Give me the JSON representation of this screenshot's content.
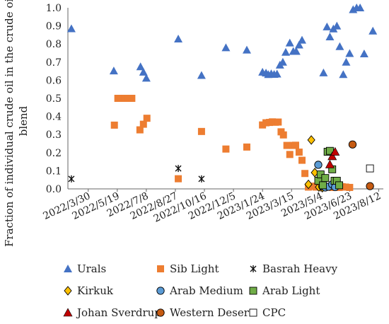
{
  "chart_data": {
    "type": "scatter",
    "title": "",
    "xlabel": "",
    "ylabel": "Fraction of individual crude oil in the crude oil blend",
    "ylabel_lines": [
      "Fraction of individual crude oil in the crude oil",
      "blend"
    ],
    "x_type": "date",
    "xlim": [
      "2022-02-23",
      "2023-08-20"
    ],
    "ylim": [
      0,
      1
    ],
    "x_ticks": [
      "2022-03-30",
      "2022-05-19",
      "2022-07-08",
      "2022-08-27",
      "2022-10-16",
      "2022-12-05",
      "2023-01-24",
      "2023-03-15",
      "2023-05-04",
      "2023-06-23",
      "2023-08-12"
    ],
    "x_tick_labels": [
      "2022/3/30",
      "2022/5/19",
      "2022/7/8",
      "2022/8/27",
      "2022/10/16",
      "2022/12/5",
      "2023/1/24",
      "2023/3/15",
      "2023/5/4",
      "2023/6/23",
      "2023/8/12"
    ],
    "y_ticks": [
      0,
      0.1,
      0.2,
      0.3,
      0.4,
      0.5,
      0.6,
      0.7,
      0.8,
      0.9,
      1.0
    ],
    "y_tick_labels": [
      "0.0",
      "0.1",
      "0.2",
      "0.3",
      "0.4",
      "0.5",
      "0.6",
      "0.7",
      "0.8",
      "0.9",
      "1.0"
    ],
    "grid": false,
    "legend_position": "bottom",
    "series": [
      {
        "name": "Urals",
        "marker": "triangle",
        "color": "#4472C4",
        "points": [
          [
            "2022-03-01",
            0.885
          ],
          [
            "2022-05-13",
            0.652
          ],
          [
            "2022-06-28",
            0.675
          ],
          [
            "2022-07-03",
            0.645
          ],
          [
            "2022-07-08",
            0.612
          ],
          [
            "2022-09-01",
            0.828
          ],
          [
            "2022-10-11",
            0.627
          ],
          [
            "2022-11-22",
            0.78
          ],
          [
            "2022-12-28",
            0.767
          ],
          [
            "2023-01-24",
            0.645
          ],
          [
            "2023-01-30",
            0.64
          ],
          [
            "2023-02-03",
            0.632
          ],
          [
            "2023-02-08",
            0.636
          ],
          [
            "2023-02-13",
            0.633
          ],
          [
            "2023-02-18",
            0.635
          ],
          [
            "2023-02-23",
            0.684
          ],
          [
            "2023-02-28",
            0.7
          ],
          [
            "2023-03-05",
            0.755
          ],
          [
            "2023-03-12",
            0.806
          ],
          [
            "2023-03-18",
            0.76
          ],
          [
            "2023-03-23",
            0.76
          ],
          [
            "2023-03-28",
            0.795
          ],
          [
            "2023-04-02",
            0.822
          ],
          [
            "2023-05-09",
            0.641
          ],
          [
            "2023-05-15",
            0.895
          ],
          [
            "2023-05-20",
            0.84
          ],
          [
            "2023-05-26",
            0.884
          ],
          [
            "2023-06-01",
            0.9
          ],
          [
            "2023-06-06",
            0.786
          ],
          [
            "2023-06-12",
            0.632
          ],
          [
            "2023-06-17",
            0.7
          ],
          [
            "2023-06-23",
            0.748
          ],
          [
            "2023-06-29",
            0.99
          ],
          [
            "2023-07-05",
            1.0
          ],
          [
            "2023-07-11",
            1.0
          ],
          [
            "2023-07-18",
            0.746
          ],
          [
            "2023-08-02",
            0.872
          ]
        ]
      },
      {
        "name": "Sib Light",
        "marker": "square",
        "color": "#ED7D31",
        "points": [
          [
            "2022-05-14",
            0.352
          ],
          [
            "2022-05-20",
            0.5
          ],
          [
            "2022-05-26",
            0.5
          ],
          [
            "2022-06-01",
            0.5
          ],
          [
            "2022-06-07",
            0.5
          ],
          [
            "2022-06-13",
            0.5
          ],
          [
            "2022-06-27",
            0.326
          ],
          [
            "2022-07-03",
            0.357
          ],
          [
            "2022-07-09",
            0.39
          ],
          [
            "2022-09-01",
            0.056
          ],
          [
            "2022-10-11",
            0.317
          ],
          [
            "2022-11-22",
            0.22
          ],
          [
            "2022-12-28",
            0.231
          ],
          [
            "2023-01-24",
            0.353
          ],
          [
            "2023-01-30",
            0.365
          ],
          [
            "2023-02-05",
            0.367
          ],
          [
            "2023-02-10",
            0.37
          ],
          [
            "2023-02-15",
            0.368
          ],
          [
            "2023-02-20",
            0.369
          ],
          [
            "2023-02-25",
            0.315
          ],
          [
            "2023-03-01",
            0.298
          ],
          [
            "2023-03-07",
            0.24
          ],
          [
            "2023-03-12",
            0.19
          ],
          [
            "2023-03-17",
            0.24
          ],
          [
            "2023-03-22",
            0.241
          ],
          [
            "2023-03-28",
            0.203
          ],
          [
            "2023-04-02",
            0.158
          ],
          [
            "2023-04-07",
            0.085
          ],
          [
            "2023-04-13",
            0.01
          ],
          [
            "2023-04-20",
            0.015
          ],
          [
            "2023-04-26",
            0.01
          ],
          [
            "2023-05-02",
            0.012
          ],
          [
            "2023-05-07",
            0.008
          ],
          [
            "2023-05-12",
            0.01
          ],
          [
            "2023-05-18",
            0.01
          ],
          [
            "2023-05-24",
            0.008
          ],
          [
            "2023-05-30",
            0.01
          ],
          [
            "2023-06-05",
            0.008
          ],
          [
            "2023-06-10",
            0.012
          ],
          [
            "2023-06-16",
            0.01
          ],
          [
            "2023-06-23",
            0.008
          ]
        ]
      },
      {
        "name": "Basrah Heavy",
        "marker": "asterisk",
        "color": "#111111",
        "points": [
          [
            "2022-03-01",
            0.055
          ],
          [
            "2022-09-01",
            0.113
          ],
          [
            "2022-10-11",
            0.055
          ]
        ]
      },
      {
        "name": "Kirkuk",
        "marker": "diamond",
        "color": "#FFC000",
        "points": [
          [
            "2023-04-13",
            0.025
          ],
          [
            "2023-04-18",
            0.27
          ],
          [
            "2023-04-24",
            0.09
          ],
          [
            "2023-05-01",
            0.01
          ],
          [
            "2023-05-07",
            0.006
          ]
        ]
      },
      {
        "name": "Arab Medium",
        "marker": "circle",
        "color": "#5B9BD5",
        "points": [
          [
            "2023-04-30",
            0.133
          ],
          [
            "2023-05-07",
            0.015
          ],
          [
            "2023-05-12",
            0.008
          ],
          [
            "2023-05-18",
            0.012
          ],
          [
            "2023-05-24",
            0.025
          ],
          [
            "2023-05-29",
            0.01
          ]
        ]
      },
      {
        "name": "Arab Light",
        "marker": "square",
        "color": "#70AD47",
        "points": [
          [
            "2023-04-30",
            0.045
          ],
          [
            "2023-05-04",
            0.08
          ],
          [
            "2023-05-08",
            0.02
          ],
          [
            "2023-05-12",
            0.06
          ],
          [
            "2023-05-16",
            0.205
          ],
          [
            "2023-05-20",
            0.21
          ],
          [
            "2023-05-24",
            0.108
          ],
          [
            "2023-05-28",
            0.045
          ],
          [
            "2023-06-01",
            0.045
          ],
          [
            "2023-06-05",
            0.02
          ]
        ]
      },
      {
        "name": "Johan Sverdrup",
        "marker": "triangle",
        "color": "#C00000",
        "points": [
          [
            "2023-05-20",
            0.135
          ],
          [
            "2023-05-24",
            0.18
          ],
          [
            "2023-05-29",
            0.205
          ]
        ]
      },
      {
        "name": "Western Desert",
        "marker": "circle",
        "color": "#C55A11",
        "points": [
          [
            "2023-06-28",
            0.245
          ],
          [
            "2023-07-28",
            0.015
          ]
        ]
      },
      {
        "name": "CPC",
        "marker": "square",
        "color": "#FFFFFF",
        "points": [
          [
            "2023-07-28",
            0.113
          ]
        ]
      }
    ]
  }
}
